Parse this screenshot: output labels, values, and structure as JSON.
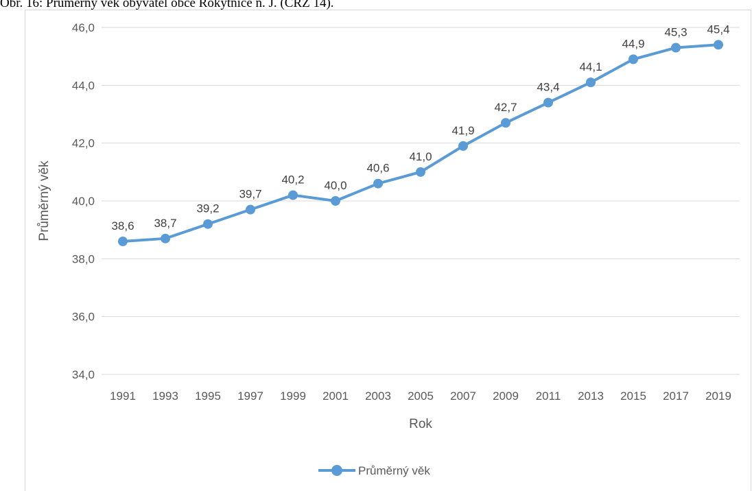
{
  "caption": "Obr. 16: Průměrný věk obyvatel obce Rokytnice n. J. (ČRZ 14).",
  "chart_data": {
    "type": "line",
    "title": "",
    "xlabel": "Rok",
    "ylabel": "Průměrný věk",
    "ylim": [
      34,
      46
    ],
    "yticks": [
      "34,0",
      "36,0",
      "38,0",
      "40,0",
      "42,0",
      "44,0",
      "46,0"
    ],
    "grid": true,
    "legend_position": "bottom",
    "series_color": "#5b9bd5",
    "categories": [
      "1991",
      "1993",
      "1995",
      "1997",
      "1999",
      "2001",
      "2003",
      "2005",
      "2007",
      "2009",
      "2011",
      "2013",
      "2015",
      "2017",
      "2019"
    ],
    "series": [
      {
        "name": "Průměrný věk",
        "values": [
          38.6,
          38.7,
          39.2,
          39.7,
          40.2,
          40.0,
          40.6,
          41.0,
          41.9,
          42.7,
          43.4,
          44.1,
          44.9,
          45.3,
          45.4
        ],
        "labels": [
          "38,6",
          "38,7",
          "39,2",
          "39,7",
          "40,2",
          "40,0",
          "40,6",
          "41,0",
          "41,9",
          "42,7",
          "43,4",
          "44,1",
          "44,9",
          "45,3",
          "45,4"
        ]
      }
    ]
  }
}
